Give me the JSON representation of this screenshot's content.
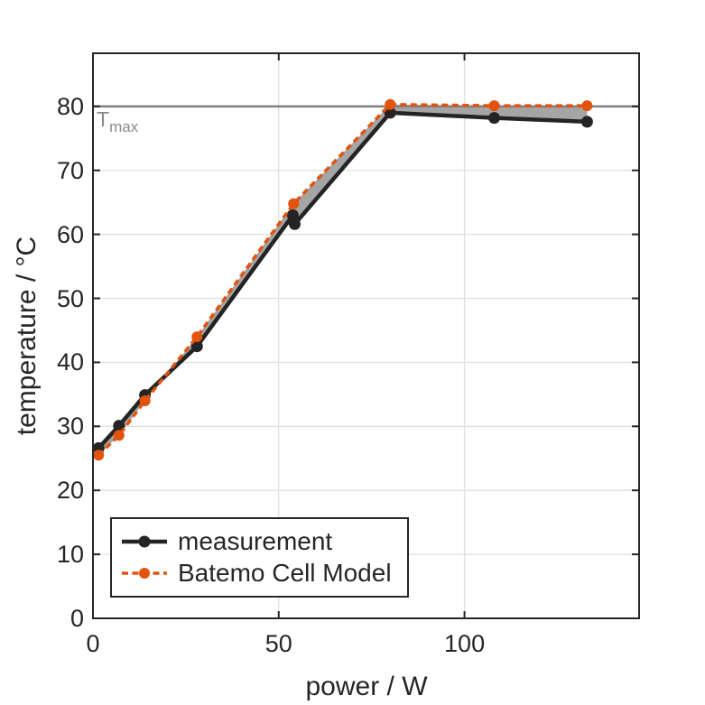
{
  "chart_data": {
    "type": "line",
    "title": "",
    "xlabel": "power / W",
    "ylabel": "temperature / °C",
    "xlim": [
      0,
      147
    ],
    "ylim": [
      0,
      88.3
    ],
    "xticks": [
      0,
      50,
      100
    ],
    "yticks": [
      0,
      10,
      20,
      30,
      40,
      50,
      60,
      70,
      80
    ],
    "grid": true,
    "grid_color": "#e0e0e0",
    "axis_color": "#262626",
    "legend_position": "southwest-inside",
    "band_between_series": true,
    "band_color": "#a5a5a5",
    "tmax_line": {
      "y": 80,
      "color": "#808080",
      "label_main": "T",
      "label_sub": "max"
    },
    "series": [
      {
        "name": "measurement",
        "color": "#242424",
        "style": "solid",
        "line_width": 4.5,
        "marker": "circle",
        "marker_radius": 6.5,
        "x": [
          1.5,
          7,
          14,
          28,
          53.8,
          54.3,
          80,
          108,
          133
        ],
        "y": [
          26.6,
          30.1,
          34.9,
          42.5,
          63.0,
          61.6,
          79.0,
          78.2,
          77.6
        ]
      },
      {
        "name": "Batemo Cell Model",
        "color": "#e2530d",
        "style": "dashed",
        "line_width": 3.5,
        "dash": "7 4.5",
        "marker": "circle",
        "marker_radius": 6,
        "x": [
          1.5,
          7,
          14,
          28,
          54,
          80,
          108,
          133
        ],
        "y": [
          25.5,
          28.6,
          34.0,
          44.0,
          64.8,
          80.3,
          80.1,
          80.1
        ]
      }
    ]
  }
}
